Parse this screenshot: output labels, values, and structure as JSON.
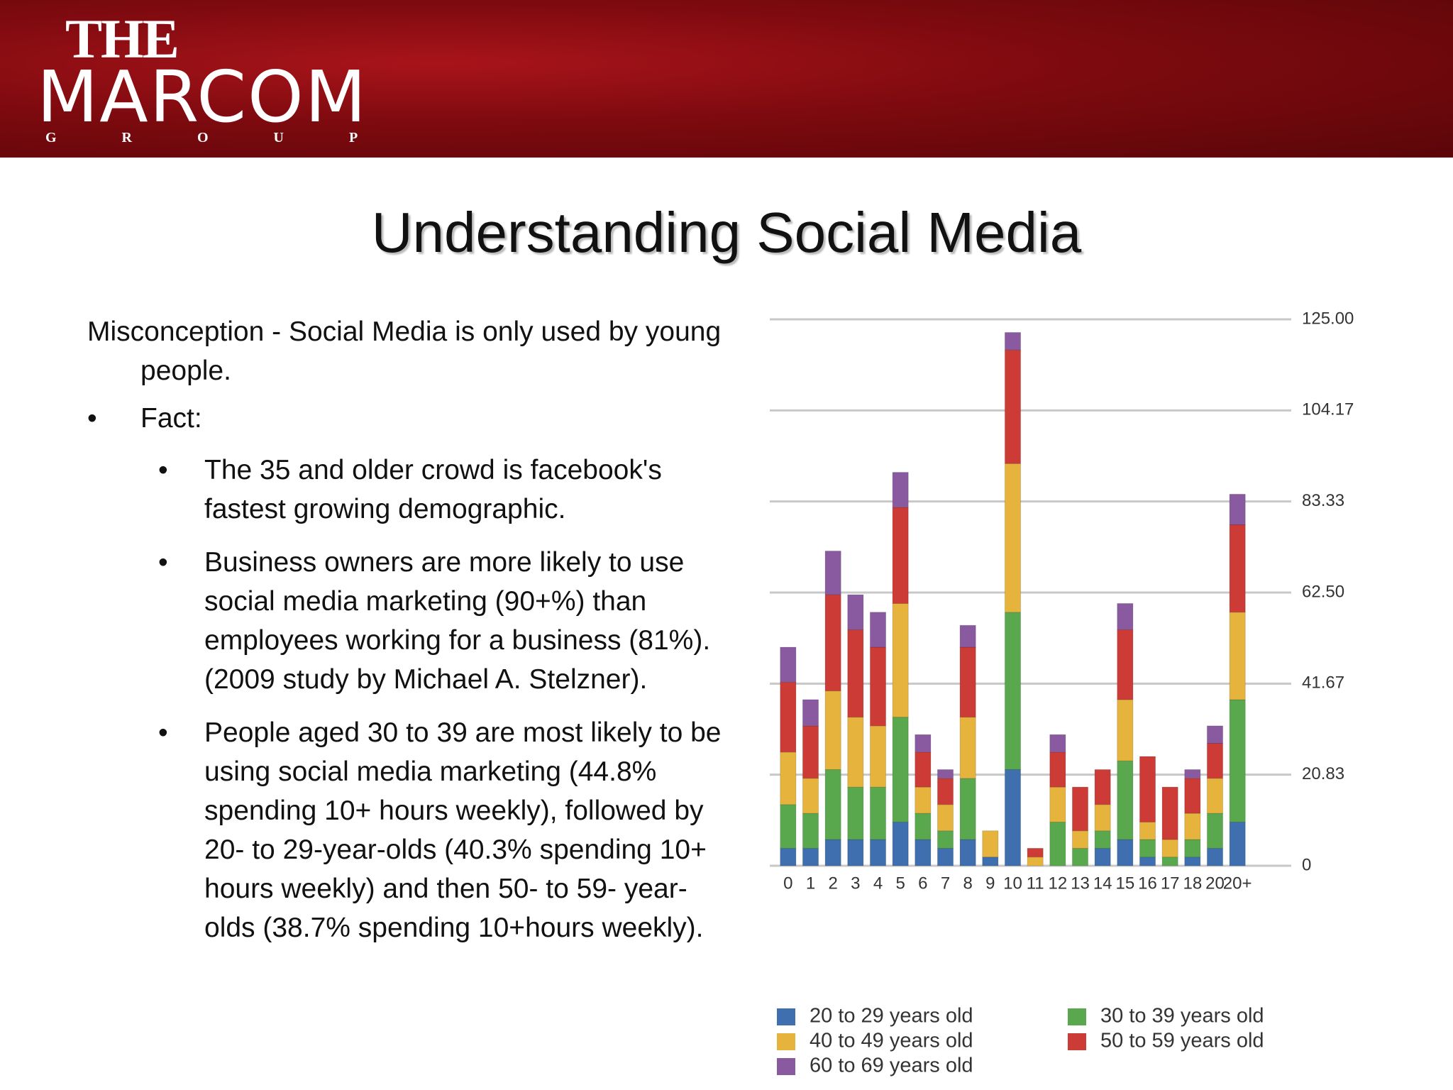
{
  "header": {
    "logo": {
      "line1": "THE",
      "line2": "MARCOM",
      "line3": "GROUP"
    }
  },
  "title": "Understanding Social Media",
  "body": {
    "intro": "Misconception  - Social Media is only used by young people.",
    "fact": "Fact:",
    "bullets": [
      "The 35 and older crowd is facebook's fastest growing demographic.",
      "Business owners are more likely to use social media marketing (90+%) than employees working for a business (81%). (2009 study by Michael A. Stelzner).",
      "People aged 30 to 39 are most likely to be using social media marketing (44.8% spending 10+ hours weekly), followed by 20- to 29-year-olds (40.3% spending 10+ hours weekly) and then 50- to 59- year-olds (38.7% spending 10+hours weekly)."
    ]
  },
  "chart_data": {
    "type": "stacked_bar",
    "categories": [
      "0",
      "1",
      "2",
      "3",
      "4",
      "5",
      "6",
      "7",
      "8",
      "9",
      "10",
      "11",
      "12",
      "13",
      "14",
      "15",
      "16",
      "17",
      "18",
      "20",
      "20+"
    ],
    "series": [
      {
        "name": "20 to 29 years old",
        "color": "#3f6fae",
        "values": [
          4,
          4,
          6,
          6,
          6,
          10,
          6,
          4,
          6,
          2,
          22,
          0,
          0,
          0,
          4,
          6,
          2,
          0,
          2,
          4,
          10
        ]
      },
      {
        "name": "30 to 39 years old",
        "color": "#5aa84e",
        "values": [
          10,
          8,
          16,
          12,
          12,
          24,
          6,
          4,
          14,
          0,
          36,
          0,
          10,
          4,
          4,
          18,
          4,
          2,
          4,
          8,
          28
        ]
      },
      {
        "name": "40 to 49 years old",
        "color": "#e6b43c",
        "values": [
          12,
          8,
          18,
          16,
          14,
          26,
          6,
          6,
          14,
          6,
          34,
          2,
          8,
          4,
          6,
          14,
          4,
          4,
          6,
          8,
          20
        ]
      },
      {
        "name": "50 to 59 years old",
        "color": "#cc3b35",
        "values": [
          16,
          12,
          22,
          20,
          18,
          22,
          8,
          6,
          16,
          0,
          26,
          2,
          8,
          10,
          8,
          16,
          15,
          12,
          8,
          8,
          20
        ]
      },
      {
        "name": "60 to 69 years old",
        "color": "#8a5aa0",
        "values": [
          8,
          6,
          10,
          8,
          8,
          8,
          4,
          2,
          5,
          0,
          4,
          0,
          4,
          0,
          0,
          6,
          0,
          0,
          2,
          4,
          7
        ]
      }
    ],
    "ylim": [
      0,
      125
    ],
    "yticks": [
      0,
      {
        "value": 20.83,
        "label": "20.83"
      },
      {
        "value": 41.67,
        "label": "41.67"
      },
      {
        "value": 62.5,
        "label": "62.50"
      },
      {
        "value": 83.33,
        "label": "83.33"
      },
      {
        "value": 104.17,
        "label": "104.17"
      },
      {
        "value": 125,
        "label": "125.00"
      }
    ],
    "grid": true
  }
}
